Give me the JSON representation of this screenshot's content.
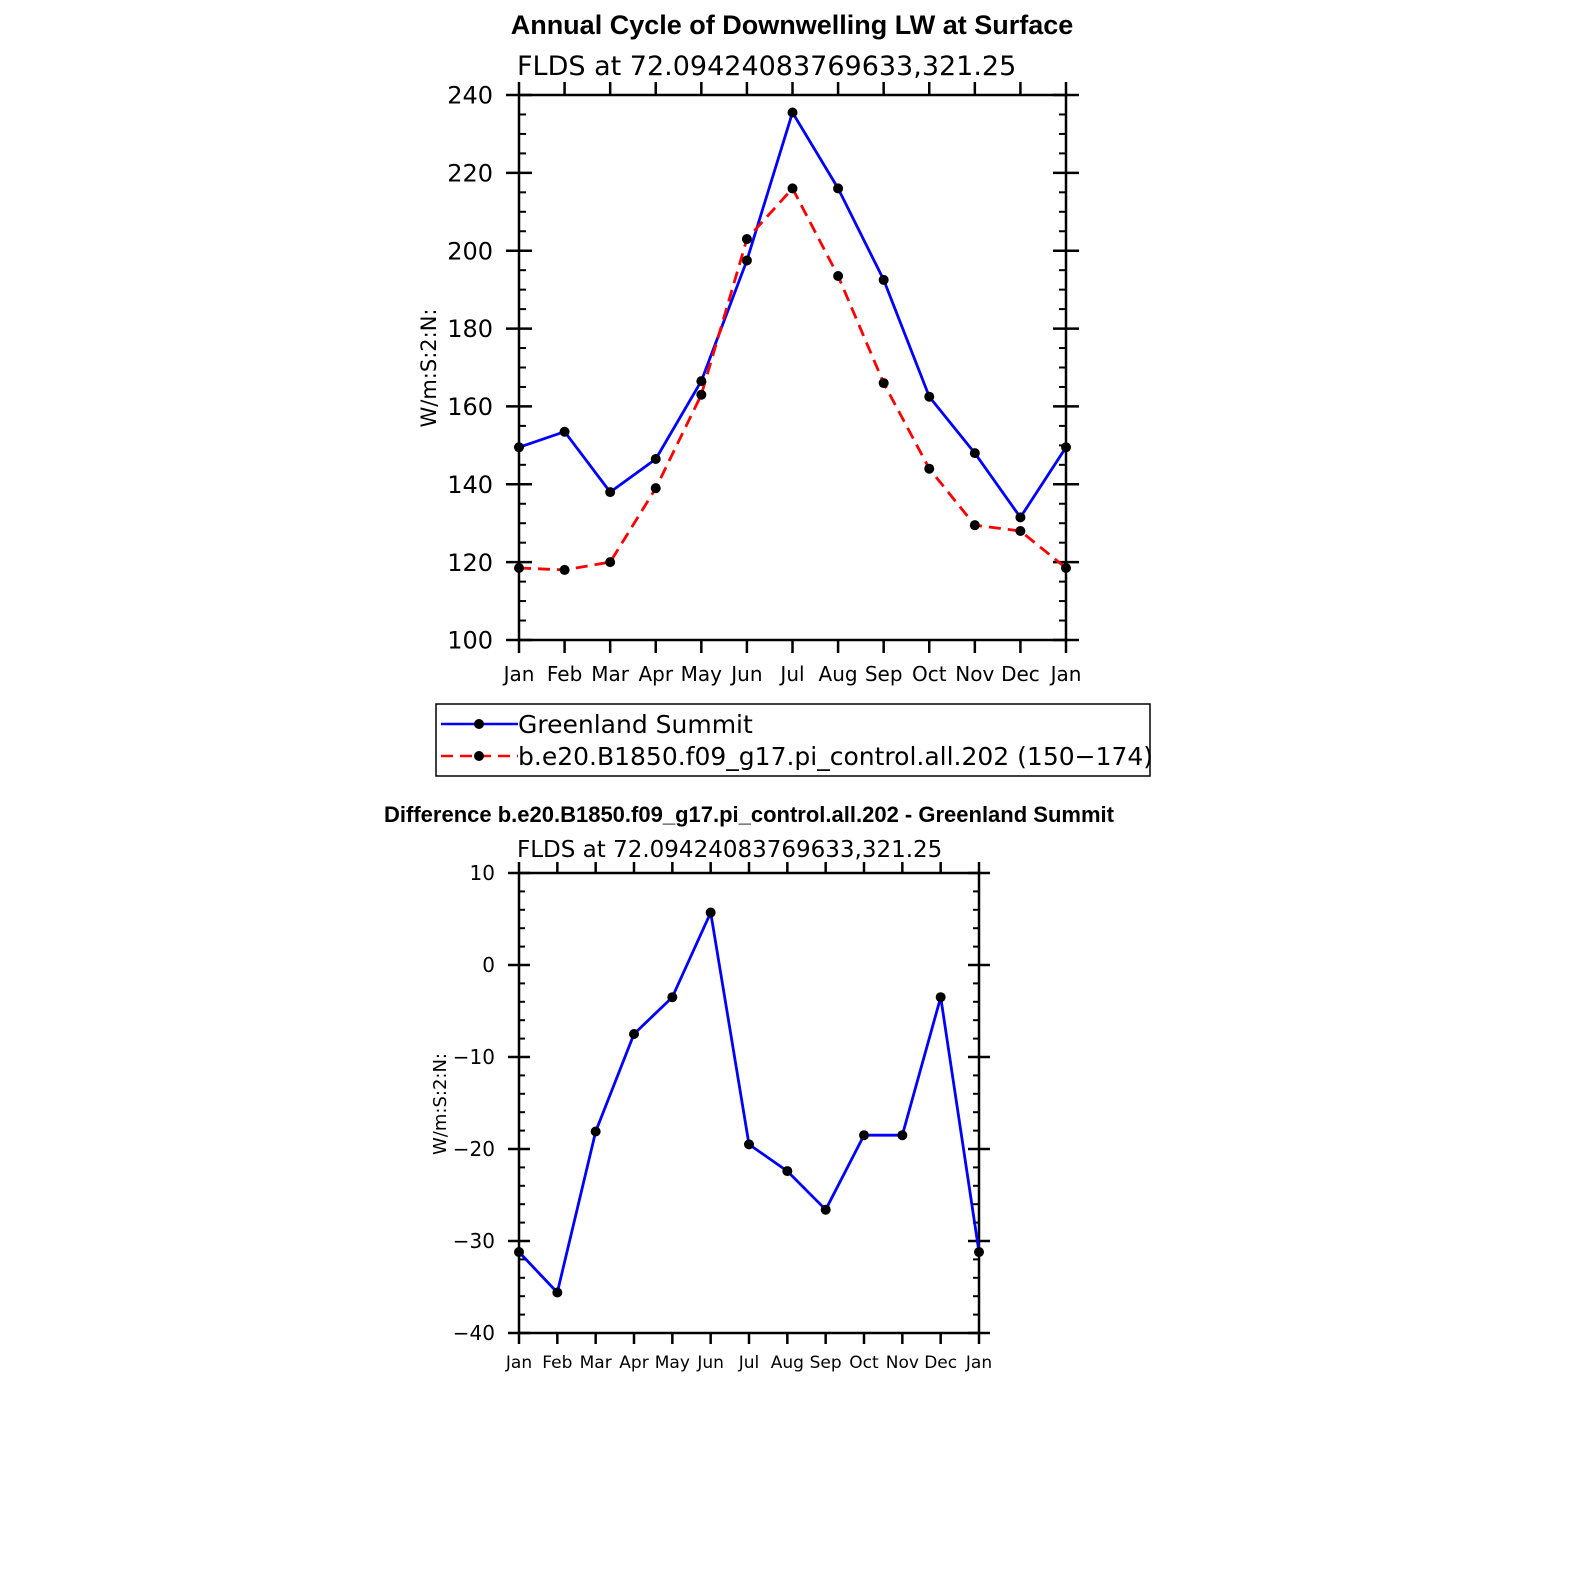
{
  "chart_data": [
    {
      "type": "line",
      "title": "Annual Cycle of Downwelling LW at Surface",
      "subtitle": "FLDS at 72.09424083769633,321.25",
      "ylabel": "W/m:S:2:N:",
      "xlabel": "",
      "ylim": [
        100,
        240
      ],
      "yticks": [
        100,
        120,
        140,
        160,
        180,
        200,
        220,
        240
      ],
      "categories": [
        "Jan",
        "Feb",
        "Mar",
        "Apr",
        "May",
        "Jun",
        "Jul",
        "Aug",
        "Sep",
        "Oct",
        "Nov",
        "Dec",
        "Jan"
      ],
      "series": [
        {
          "name": "Greenland Summit",
          "color": "#0000ff",
          "dash": "solid",
          "values": [
            149.5,
            153.5,
            138,
            146.5,
            166.5,
            197.5,
            235.5,
            216,
            192.5,
            162.5,
            148,
            131.5,
            149.5
          ]
        },
        {
          "name": "b.e20.B1850.f09_g17.pi_control.all.202 (150−174)",
          "color": "#ff0000",
          "dash": "dashed",
          "values": [
            118.5,
            118,
            120,
            139,
            163,
            203,
            216,
            193.5,
            166,
            144,
            129.5,
            128,
            118.5
          ]
        }
      ],
      "legend": "bottom"
    },
    {
      "type": "line",
      "title": "Difference b.e20.B1850.f09_g17.pi_control.all.202 - Greenland Summit",
      "subtitle": "FLDS at 72.09424083769633,321.25",
      "ylabel": "W/m:S:2:N:",
      "xlabel": "",
      "ylim": [
        -40,
        10
      ],
      "yticks": [
        -40,
        -30,
        -20,
        -10,
        0,
        10
      ],
      "categories": [
        "Jan",
        "Feb",
        "Mar",
        "Apr",
        "May",
        "Jun",
        "Jul",
        "Aug",
        "Sep",
        "Oct",
        "Nov",
        "Dec",
        "Jan"
      ],
      "series": [
        {
          "name": "Difference",
          "color": "#0000ff",
          "dash": "solid",
          "values": [
            -31.2,
            -35.6,
            -18.1,
            -7.5,
            -3.5,
            5.7,
            -19.5,
            -22.4,
            -26.6,
            -18.5,
            -18.5,
            -3.5,
            -31.2
          ]
        }
      ]
    }
  ]
}
